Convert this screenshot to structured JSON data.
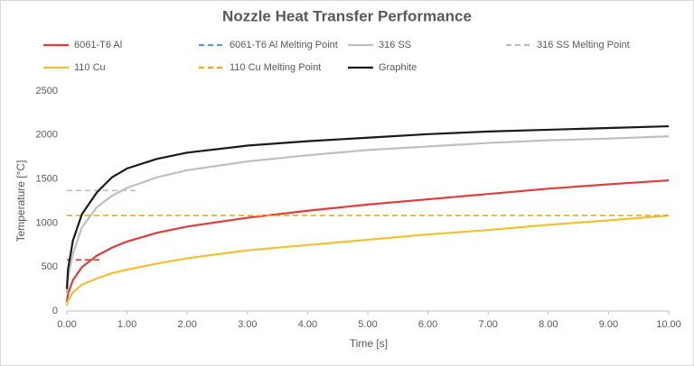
{
  "chart_data": {
    "type": "line",
    "title": "Nozzle Heat Transfer Performance",
    "x_label": "Time [s]",
    "y_label": "Temperature [°C]",
    "xlim": [
      0,
      10
    ],
    "ylim": [
      0,
      2500
    ],
    "xticks": [
      {
        "value": 0,
        "label": "0.00"
      },
      {
        "value": 1,
        "label": "1.00"
      },
      {
        "value": 2,
        "label": "2.00"
      },
      {
        "value": 3,
        "label": "3.00"
      },
      {
        "value": 4,
        "label": "4.00"
      },
      {
        "value": 5,
        "label": "5.00"
      },
      {
        "value": 6,
        "label": "6.00"
      },
      {
        "value": 7,
        "label": "7.00"
      },
      {
        "value": 8,
        "label": "8.00"
      },
      {
        "value": 9,
        "label": "9.00"
      },
      {
        "value": 10,
        "label": "10.00"
      }
    ],
    "yticks": [
      0,
      500,
      1000,
      1500,
      2000,
      2500
    ],
    "grid": false,
    "legend": "top",
    "series": [
      {
        "name": "6061-T6 Al",
        "color": "#e03c3c",
        "dashed": false,
        "x": [
          0,
          0.02,
          0.1,
          0.25,
          0.5,
          0.75,
          1,
          1.5,
          2,
          3,
          4,
          5,
          6,
          7,
          8,
          9,
          10
        ],
        "values": [
          100,
          200,
          350,
          500,
          630,
          720,
          790,
          890,
          960,
          1060,
          1140,
          1210,
          1270,
          1330,
          1390,
          1440,
          1485
        ]
      },
      {
        "name": "6061-T6 Al Melting Point",
        "color": "#5b9bd5",
        "line_color": "#e03c3c",
        "dashed": true,
        "x": [
          0,
          0.55
        ],
        "values": [
          582,
          582
        ]
      },
      {
        "name": "316 SS",
        "color": "#bfbfbf",
        "dashed": false,
        "x": [
          0,
          0.02,
          0.1,
          0.25,
          0.5,
          0.75,
          1,
          1.5,
          2,
          3,
          4,
          5,
          6,
          7,
          8,
          9,
          10
        ],
        "values": [
          200,
          380,
          650,
          950,
          1180,
          1310,
          1400,
          1520,
          1600,
          1700,
          1770,
          1830,
          1870,
          1910,
          1940,
          1960,
          1985
        ]
      },
      {
        "name": "316 SS Melting Point",
        "color": "#bfbfbf",
        "dashed": true,
        "x": [
          0,
          1.2
        ],
        "values": [
          1370,
          1370
        ]
      },
      {
        "name": "110 Cu",
        "color": "#f2c12e",
        "dashed": false,
        "x": [
          0,
          0.02,
          0.1,
          0.25,
          0.5,
          0.75,
          1,
          1.5,
          2,
          3,
          4,
          5,
          6,
          7,
          8,
          9,
          10
        ],
        "values": [
          60,
          120,
          210,
          300,
          370,
          430,
          470,
          540,
          600,
          690,
          750,
          810,
          870,
          920,
          980,
          1030,
          1085
        ]
      },
      {
        "name": "110 Cu Melting Point",
        "color": "#f5a623",
        "dashed": true,
        "x": [
          0,
          10
        ],
        "values": [
          1085,
          1085
        ]
      },
      {
        "name": "Graphite",
        "color": "#1a1a1a",
        "dashed": false,
        "x": [
          0,
          0.02,
          0.1,
          0.25,
          0.5,
          0.75,
          1,
          1.5,
          2,
          3,
          4,
          5,
          6,
          7,
          8,
          9,
          10
        ],
        "values": [
          250,
          480,
          800,
          1100,
          1350,
          1520,
          1620,
          1730,
          1800,
          1880,
          1930,
          1970,
          2010,
          2040,
          2060,
          2080,
          2100
        ]
      }
    ]
  }
}
